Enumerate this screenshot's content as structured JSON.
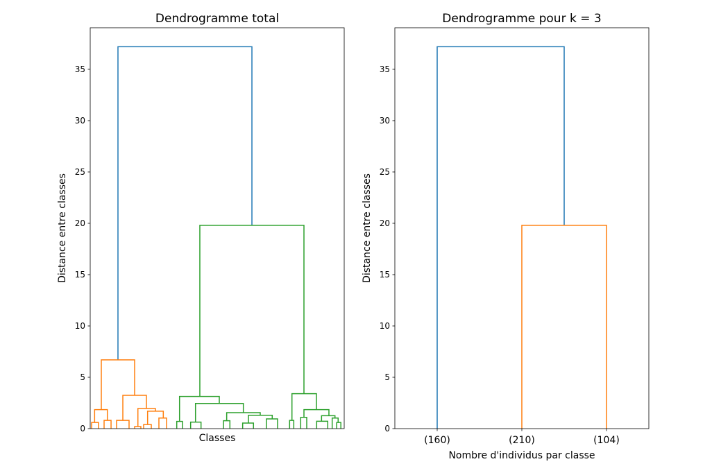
{
  "chart_data": [
    {
      "type": "dendrogram",
      "title": "Dendrogramme total",
      "xlabel": "Classes",
      "ylabel": "Distance entre classes",
      "xlim": [
        0,
        4740
      ],
      "ylim": [
        0,
        39.05
      ],
      "yticks": [
        0,
        5,
        10,
        15,
        20,
        25,
        30,
        35
      ],
      "xticklabels": [],
      "grid": false,
      "links": [
        {
          "x": [
            518,
            3018
          ],
          "y_children": [
            6.7,
            19.8
          ],
          "height": 37.2,
          "color": "#1f77b4"
        },
        {
          "x": [
            207,
            829
          ],
          "y_children": [
            1.85,
            3.24
          ],
          "height": 6.7,
          "color": "#ff7f0e"
        },
        {
          "x": [
            82,
            320
          ],
          "y_children": [
            0.6,
            0.8
          ],
          "height": 1.85,
          "color": "#ff7f0e"
        },
        {
          "x": [
            26,
            155
          ],
          "y_children": [
            0,
            0
          ],
          "height": 0.6,
          "color": "#ff7f0e"
        },
        {
          "x": [
            259,
            389
          ],
          "y_children": [
            0,
            0
          ],
          "height": 0.8,
          "color": "#ff7f0e"
        },
        {
          "x": [
            609,
            1049
          ],
          "y_children": [
            0.8,
            1.96
          ],
          "height": 3.24,
          "color": "#ff7f0e"
        },
        {
          "x": [
            492,
            725
          ],
          "y_children": [
            0,
            0
          ],
          "height": 0.8,
          "color": "#ff7f0e"
        },
        {
          "x": [
            890,
            1217
          ],
          "y_children": [
            0.2,
            1.7
          ],
          "height": 1.96,
          "color": "#ff7f0e"
        },
        {
          "x": [
            829,
            945
          ],
          "y_children": [
            0,
            0
          ],
          "height": 0.2,
          "color": "#ff7f0e"
        },
        {
          "x": [
            1071,
            1364
          ],
          "y_children": [
            0.4,
            1.03
          ],
          "height": 1.7,
          "color": "#ff7f0e"
        },
        {
          "x": [
            997,
            1140
          ],
          "y_children": [
            0,
            0
          ],
          "height": 0.4,
          "color": "#ff7f0e"
        },
        {
          "x": [
            1282,
            1425
          ],
          "y_children": [
            0,
            0
          ],
          "height": 1.03,
          "color": "#ff7f0e"
        },
        {
          "x": [
            2046,
            3989
          ],
          "y_children": [
            3.13,
            3.4
          ],
          "height": 19.8,
          "color": "#2ca02c"
        },
        {
          "x": [
            1667,
            2409
          ],
          "y_children": [
            0.7,
            2.45
          ],
          "height": 3.13,
          "color": "#2ca02c"
        },
        {
          "x": [
            1615,
            1722
          ],
          "y_children": [
            0,
            0
          ],
          "height": 0.7,
          "color": "#2ca02c"
        },
        {
          "x": [
            1965,
            2858
          ],
          "y_children": [
            0.63,
            1.55
          ],
          "height": 2.45,
          "color": "#2ca02c"
        },
        {
          "x": [
            1874,
            2068
          ],
          "y_children": [
            0,
            0
          ],
          "height": 0.63,
          "color": "#2ca02c"
        },
        {
          "x": [
            2547,
            3173
          ],
          "y_children": [
            0.77,
            1.3
          ],
          "height": 1.55,
          "color": "#2ca02c"
        },
        {
          "x": [
            2487,
            2607
          ],
          "y_children": [
            0,
            0
          ],
          "height": 0.77,
          "color": "#2ca02c"
        },
        {
          "x": [
            2953,
            3397
          ],
          "y_children": [
            0.54,
            0.95
          ],
          "height": 1.3,
          "color": "#2ca02c"
        },
        {
          "x": [
            2845,
            3047
          ],
          "y_children": [
            0,
            0
          ],
          "height": 0.54,
          "color": "#2ca02c"
        },
        {
          "x": [
            3289,
            3497
          ],
          "y_children": [
            0,
            0
          ],
          "height": 0.95,
          "color": "#2ca02c"
        },
        {
          "x": [
            3765,
            4222
          ],
          "y_children": [
            0.8,
            1.85
          ],
          "height": 3.4,
          "color": "#2ca02c"
        },
        {
          "x": [
            3721,
            3799
          ],
          "y_children": [
            0,
            0
          ],
          "height": 0.8,
          "color": "#2ca02c"
        },
        {
          "x": [
            3989,
            4455
          ],
          "y_children": [
            1.1,
            1.26
          ],
          "height": 1.85,
          "color": "#2ca02c"
        },
        {
          "x": [
            3928,
            4041
          ],
          "y_children": [
            0,
            0
          ],
          "height": 1.1,
          "color": "#2ca02c"
        },
        {
          "x": [
            4317,
            4568
          ],
          "y_children": [
            0.72,
            1.03
          ],
          "height": 1.26,
          "color": "#2ca02c"
        },
        {
          "x": [
            4226,
            4433
          ],
          "y_children": [
            0,
            0
          ],
          "height": 0.72,
          "color": "#2ca02c"
        },
        {
          "x": [
            4516,
            4627
          ],
          "y_children": [
            0,
            0.6
          ],
          "height": 1.03,
          "color": "#2ca02c"
        },
        {
          "x": [
            4600,
            4678
          ],
          "y_children": [
            0,
            0
          ],
          "height": 0.6,
          "color": "#2ca02c"
        }
      ]
    },
    {
      "type": "dendrogram",
      "title": "Dendrogramme pour k = 3",
      "xlabel": "Nombre d'individus par classe",
      "ylabel": "Distance entre classes",
      "xlim": [
        0,
        30
      ],
      "ylim": [
        0,
        39.05
      ],
      "yticks": [
        0,
        5,
        10,
        15,
        20,
        25,
        30,
        35
      ],
      "xticks": [
        5,
        15,
        25
      ],
      "xticklabels": [
        "(160)",
        "(210)",
        "(104)"
      ],
      "grid": false,
      "links": [
        {
          "x": [
            5,
            20
          ],
          "y_children": [
            0,
            19.8
          ],
          "height": 37.2,
          "color": "#1f77b4"
        },
        {
          "x": [
            15,
            25
          ],
          "y_children": [
            0,
            0
          ],
          "height": 19.8,
          "color": "#ff7f0e"
        }
      ]
    }
  ]
}
